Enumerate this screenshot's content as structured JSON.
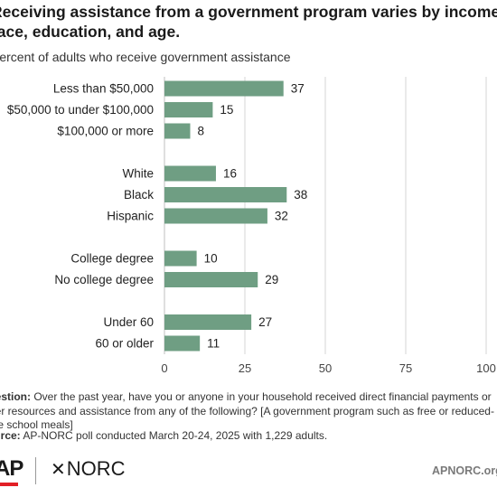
{
  "title": "Receiving assistance from a government program varies by income, race, education, and age.",
  "subtitle": "Percent of adults who receive government assistance",
  "chart_data": {
    "type": "bar",
    "orientation": "horizontal",
    "categories": [
      "Less than $50,000",
      "$50,000 to under $100,000",
      "$100,000 or more",
      "White",
      "Black",
      "Hispanic",
      "College degree",
      "No college degree",
      "Under 60",
      "60 or older"
    ],
    "groups": [
      {
        "items": [
          0,
          1,
          2
        ]
      },
      {
        "items": [
          3,
          4,
          5
        ]
      },
      {
        "items": [
          6,
          7
        ]
      },
      {
        "items": [
          8,
          9
        ]
      }
    ],
    "values": [
      37,
      15,
      8,
      16,
      38,
      32,
      10,
      29,
      27,
      11
    ],
    "xlim": [
      0,
      100
    ],
    "xticks": [
      0,
      25,
      50,
      75,
      100
    ],
    "grid": true,
    "bar_color": "#6f9e83",
    "grid_color": "#d6d6d6",
    "xlabel": "",
    "ylabel": ""
  },
  "footer": {
    "question_label": "Question:",
    "question_text": "Over the past year, have you or anyone in your household received direct financial payments or other resources and assistance from any of the following? [A government program such as free or reduced-price school meals]",
    "source_label": "Source:",
    "source_text": "AP-NORC poll conducted March 20-24, 2025 with 1,229 adults."
  },
  "logos": {
    "ap": "AP",
    "norc": "NORC",
    "site": "APNORC.org"
  }
}
